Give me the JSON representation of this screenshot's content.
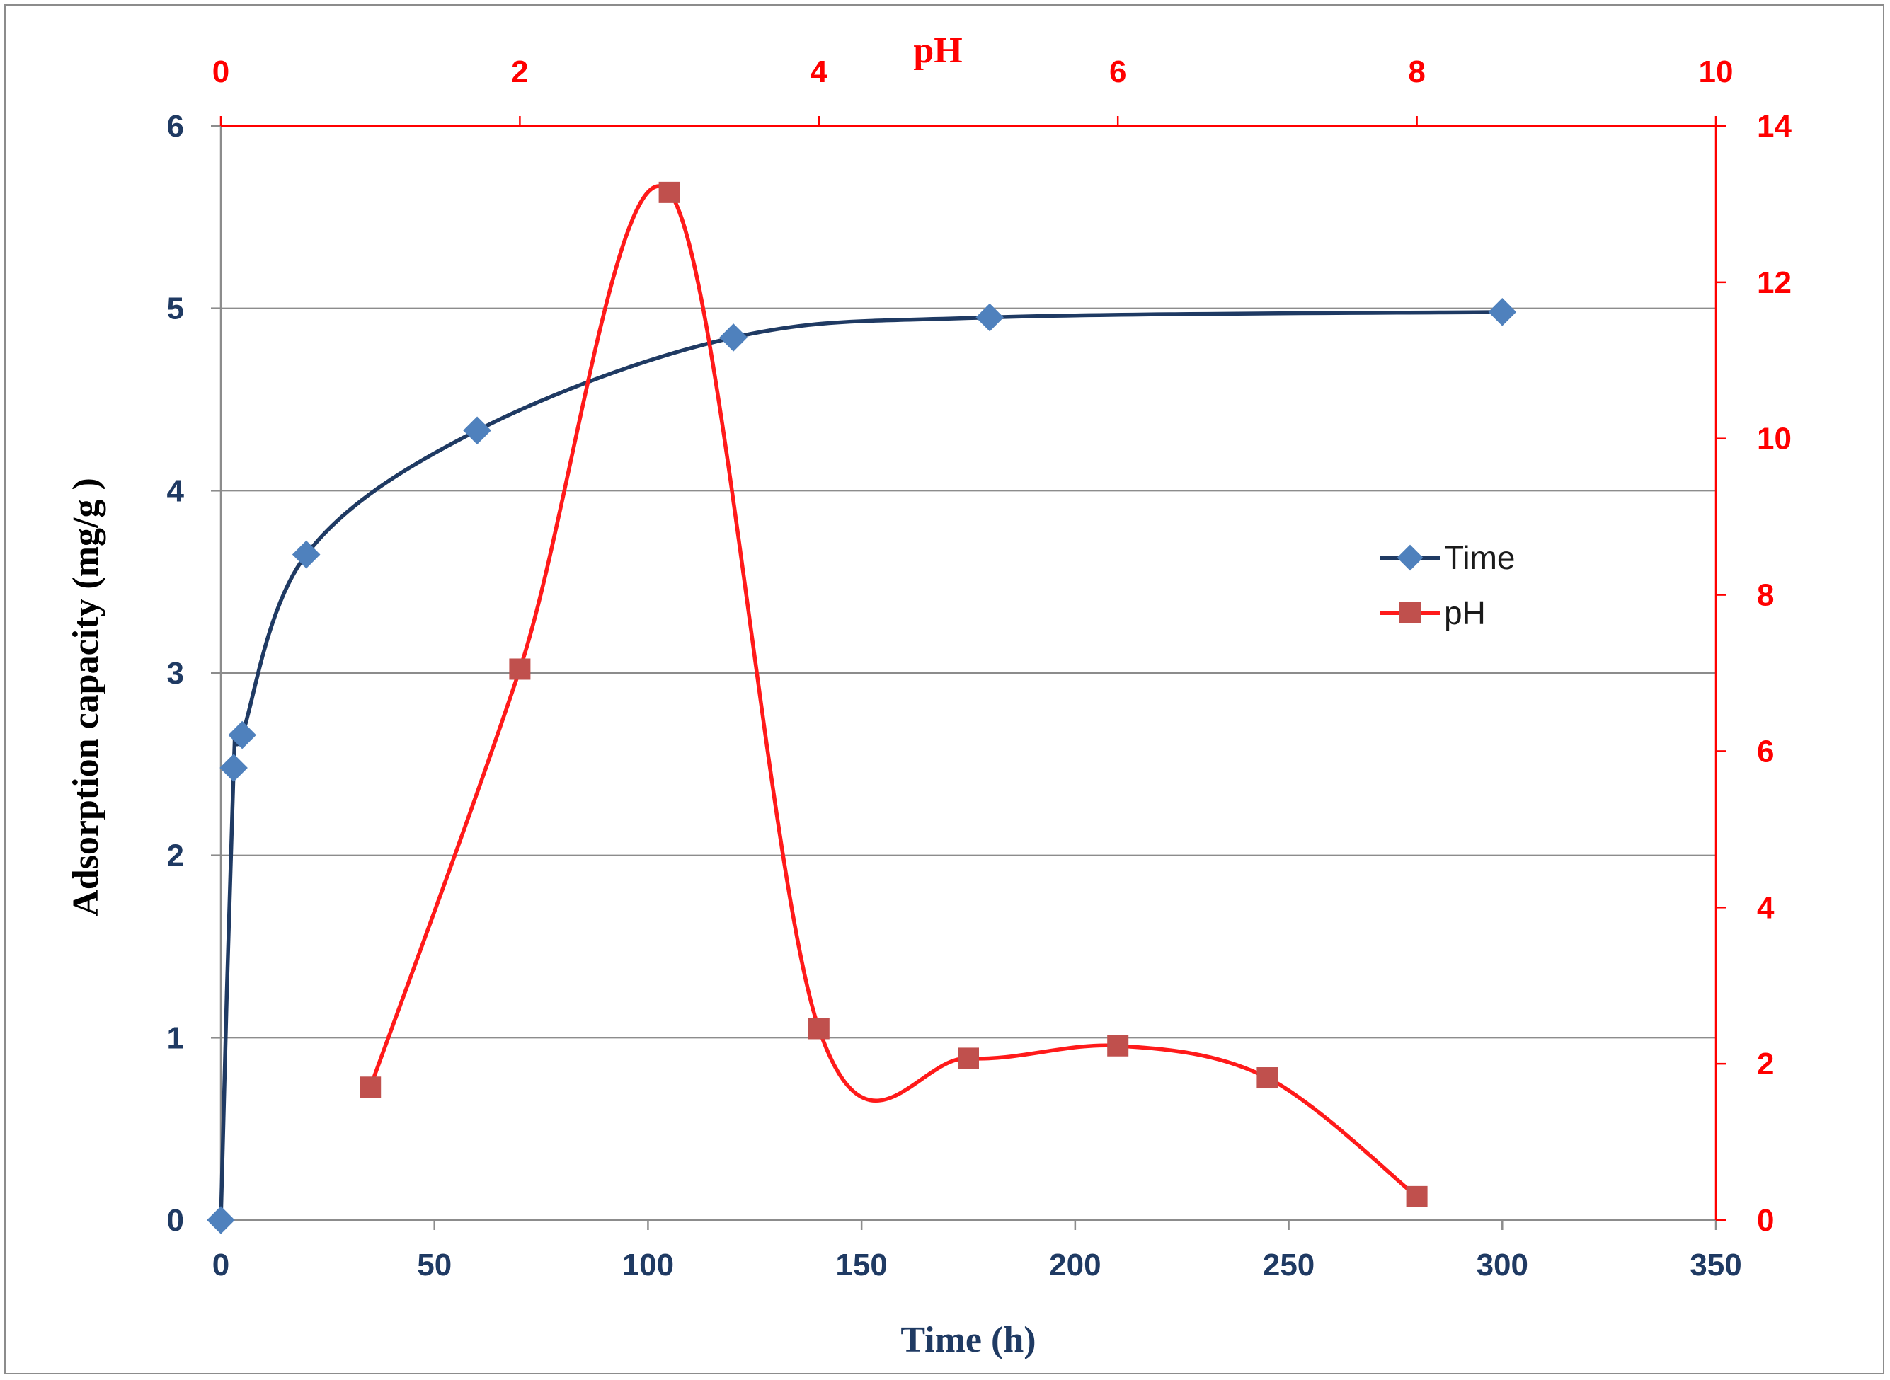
{
  "chart_data": {
    "type": "line",
    "series": [
      {
        "name": "Time",
        "axes": "bottom-left",
        "color": "#1f3a63",
        "marker_color": "#4f81bd",
        "marker": "diamond",
        "x": [
          0,
          3,
          5,
          20,
          60,
          120,
          180,
          300
        ],
        "y": [
          0,
          2.48,
          2.66,
          3.65,
          4.33,
          4.84,
          4.95,
          4.98
        ]
      },
      {
        "name": "pH",
        "axes": "top-right",
        "color": "#ff1a1a",
        "marker_color": "#c0504d",
        "marker": "square",
        "x": [
          1,
          2,
          3,
          4,
          5,
          6,
          7,
          8
        ],
        "y": [
          1.7,
          7.05,
          13.15,
          2.45,
          2.07,
          2.23,
          1.82,
          0.3
        ]
      }
    ],
    "xlabel": "Time (h)",
    "ylabel": "Adsorption capacity (mg/g )",
    "x2label": "pH",
    "xlim": [
      0,
      350
    ],
    "ylim": [
      0,
      6
    ],
    "x2lim": [
      0,
      10
    ],
    "y2lim": [
      0,
      14
    ],
    "xticks": [
      "0",
      "50",
      "100",
      "150",
      "200",
      "250",
      "300",
      "350"
    ],
    "yticks": [
      "0",
      "1",
      "2",
      "3",
      "4",
      "5",
      "6"
    ],
    "x2ticks": [
      "0",
      "2",
      "4",
      "6",
      "8",
      "10"
    ],
    "y2ticks": [
      "0",
      "2",
      "4",
      "6",
      "8",
      "10",
      "12",
      "14"
    ],
    "grid": "horizontal",
    "legend": "middle-right",
    "colors": {
      "left_axis_text": "#1f3a63",
      "secondary_axis": "#ff0000",
      "grid": "#8c8c8c"
    }
  }
}
